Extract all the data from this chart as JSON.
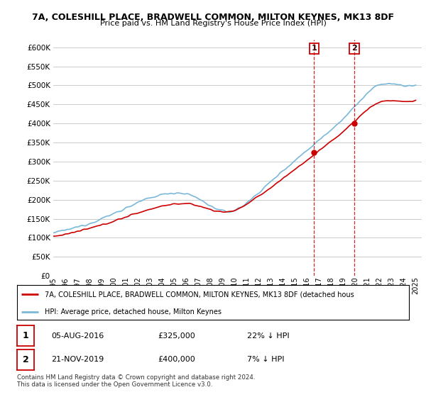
{
  "title1": "7A, COLESHILL PLACE, BRADWELL COMMON, MILTON KEYNES, MK13 8DF",
  "title2": "Price paid vs. HM Land Registry's House Price Index (HPI)",
  "yticks": [
    0,
    50000,
    100000,
    150000,
    200000,
    250000,
    300000,
    350000,
    400000,
    450000,
    500000,
    550000,
    600000
  ],
  "ylim": [
    0,
    620000
  ],
  "xlim_start": 1995,
  "xlim_end": 2025.5,
  "hpi_color": "#7ab8d9",
  "price_color": "#cc0000",
  "marker1_year": 2016.6,
  "marker1_value": 325000,
  "marker2_year": 2019.9,
  "marker2_value": 400000,
  "legend_line1": "7A, COLESHILL PLACE, BRADWELL COMMON, MILTON KEYNES, MK13 8DF (detached hous",
  "legend_line2": "HPI: Average price, detached house, Milton Keynes",
  "annotation1_label": "1",
  "annotation1_text": "05-AUG-2016",
  "annotation1_price": "£325,000",
  "annotation1_hpi": "22% ↓ HPI",
  "annotation2_label": "2",
  "annotation2_text": "21-NOV-2019",
  "annotation2_price": "£400,000",
  "annotation2_hpi": "7% ↓ HPI",
  "footnote": "Contains HM Land Registry data © Crown copyright and database right 2024.\nThis data is licensed under the Open Government Licence v3.0.",
  "grid_color": "#cccccc",
  "bg_color": "#ffffff"
}
